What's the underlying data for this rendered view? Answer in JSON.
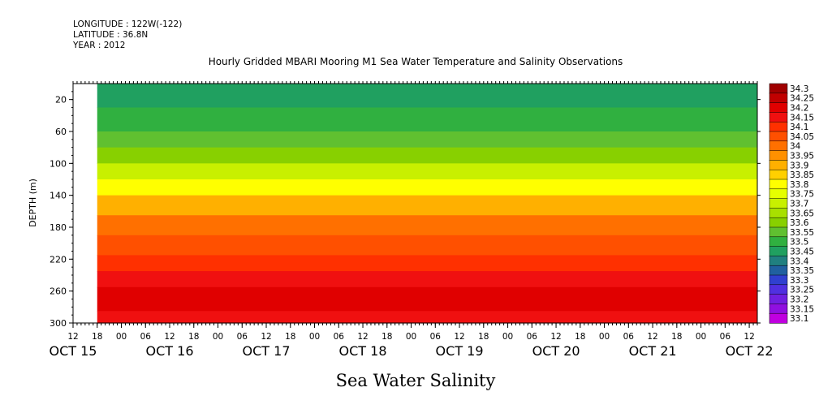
{
  "header": {
    "longitude": "LONGITUDE : 122W(-122)",
    "latitude": "LATITUDE : 36.8N",
    "year": "YEAR : 2012"
  },
  "chart_data": {
    "type": "heatmap",
    "title": "Hourly Gridded MBARI Mooring M1 Sea Water Temperature and Salinity Observations",
    "subtitle": "Sea Water Salinity",
    "ylabel": "DEPTH (m)",
    "xlabel": "",
    "ylim": [
      300,
      0
    ],
    "y_ticks": [
      20,
      60,
      100,
      140,
      180,
      220,
      260,
      300
    ],
    "x_time_range": [
      "2012-10-15T12:00",
      "2012-10-22T14:00"
    ],
    "data_start": "2012-10-15T18:00",
    "x_ticks": [
      "12",
      "18",
      "00",
      "06",
      "12",
      "18",
      "00",
      "06",
      "12",
      "18",
      "00",
      "06",
      "12",
      "18",
      "00",
      "06",
      "12",
      "18",
      "00",
      "06",
      "12",
      "18",
      "00",
      "06",
      "12",
      "18",
      "00",
      "06",
      "12"
    ],
    "x_day_labels": [
      "OCT 15",
      "OCT 16",
      "OCT 17",
      "OCT 18",
      "OCT 19",
      "OCT 20",
      "OCT 21",
      "OCT 22"
    ],
    "colorbar_levels": [
      "34.3",
      "34.25",
      "34.2",
      "34.15",
      "34.1",
      "34.05",
      "34",
      "33.95",
      "33.9",
      "33.85",
      "33.8",
      "33.75",
      "33.7",
      "33.65",
      "33.6",
      "33.55",
      "33.5",
      "33.45",
      "33.4",
      "33.35",
      "33.3",
      "33.25",
      "33.2",
      "33.15",
      "33.1"
    ],
    "colorbar_colors": [
      "#a00000",
      "#c00000",
      "#e00000",
      "#f01010",
      "#ff3000",
      "#ff5000",
      "#ff7000",
      "#ff9000",
      "#ffb000",
      "#ffd000",
      "#ffff00",
      "#e6ff00",
      "#c8f000",
      "#a8e000",
      "#88d000",
      "#60c030",
      "#30b040",
      "#20a060",
      "#208080",
      "#2060a0",
      "#3040d0",
      "#5030e0",
      "#7020e0",
      "#9010e0",
      "#c000e0"
    ],
    "depth_profile": [
      {
        "depth": 5,
        "value": 33.45
      },
      {
        "depth": 30,
        "value": 33.5
      },
      {
        "depth": 60,
        "value": 33.55
      },
      {
        "depth": 80,
        "value": 33.6
      },
      {
        "depth": 100,
        "value": 33.7
      },
      {
        "depth": 120,
        "value": 33.8
      },
      {
        "depth": 140,
        "value": 33.9
      },
      {
        "depth": 165,
        "value": 34.0
      },
      {
        "depth": 190,
        "value": 34.05
      },
      {
        "depth": 215,
        "value": 34.1
      },
      {
        "depth": 235,
        "value": 34.15
      },
      {
        "depth": 255,
        "value": 34.2
      },
      {
        "depth": 285,
        "value": 34.15
      },
      {
        "depth": 300,
        "value": 34.15
      }
    ]
  }
}
